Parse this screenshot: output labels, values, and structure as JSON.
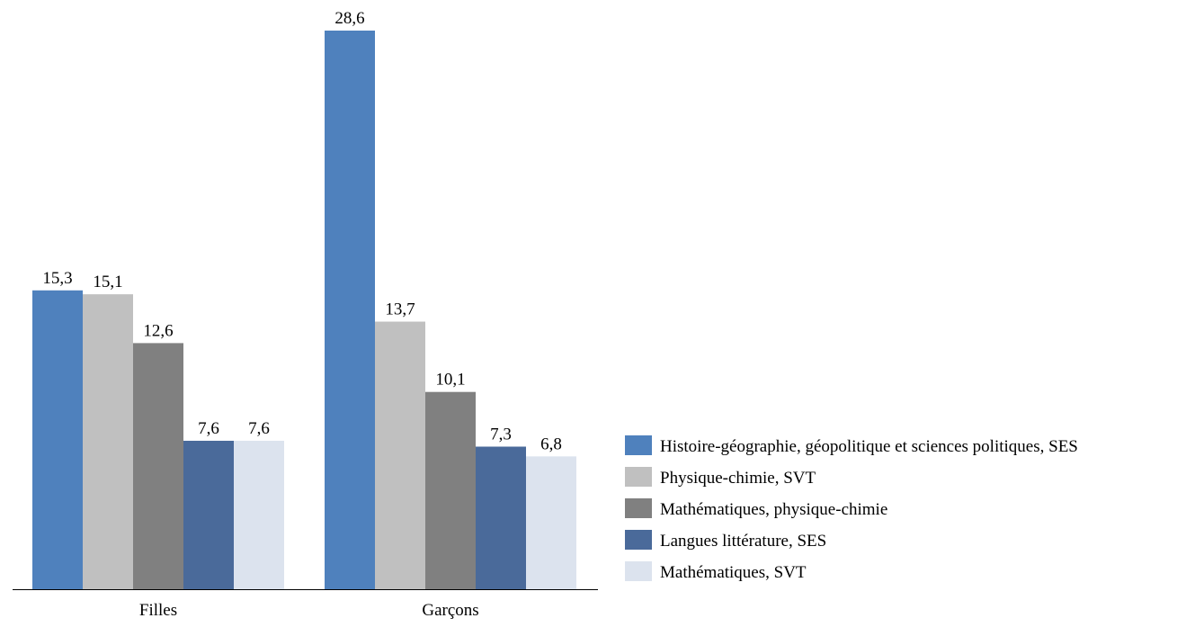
{
  "chart_data": {
    "type": "bar",
    "title": "",
    "xlabel": "",
    "ylabel": "",
    "ylim": [
      0,
      28.6
    ],
    "grid": false,
    "legend_position": "right",
    "categories": [
      "Filles",
      "Garçons"
    ],
    "series": [
      {
        "name": "Histoire-géographie, géopolitique et sciences politiques, SES",
        "color": "#4F81BD",
        "values": [
          15.3,
          28.6
        ],
        "labels": [
          "15,3",
          "28,6"
        ]
      },
      {
        "name": "Physique-chimie, SVT",
        "color": "#C0C0C0",
        "values": [
          15.1,
          13.7
        ],
        "labels": [
          "15,1",
          "13,7"
        ]
      },
      {
        "name": "Mathématiques, physique-chimie",
        "color": "#808080",
        "values": [
          12.6,
          10.1
        ],
        "labels": [
          "12,6",
          "10,1"
        ]
      },
      {
        "name": "Langues littérature, SES",
        "color": "#4A6A9A",
        "values": [
          7.6,
          7.3
        ],
        "labels": [
          "7,6",
          "7,3"
        ]
      },
      {
        "name": "Mathématiques, SVT",
        "color": "#DCE3EE",
        "values": [
          7.6,
          6.8
        ],
        "labels": [
          "7,6",
          "6,8"
        ]
      }
    ]
  }
}
